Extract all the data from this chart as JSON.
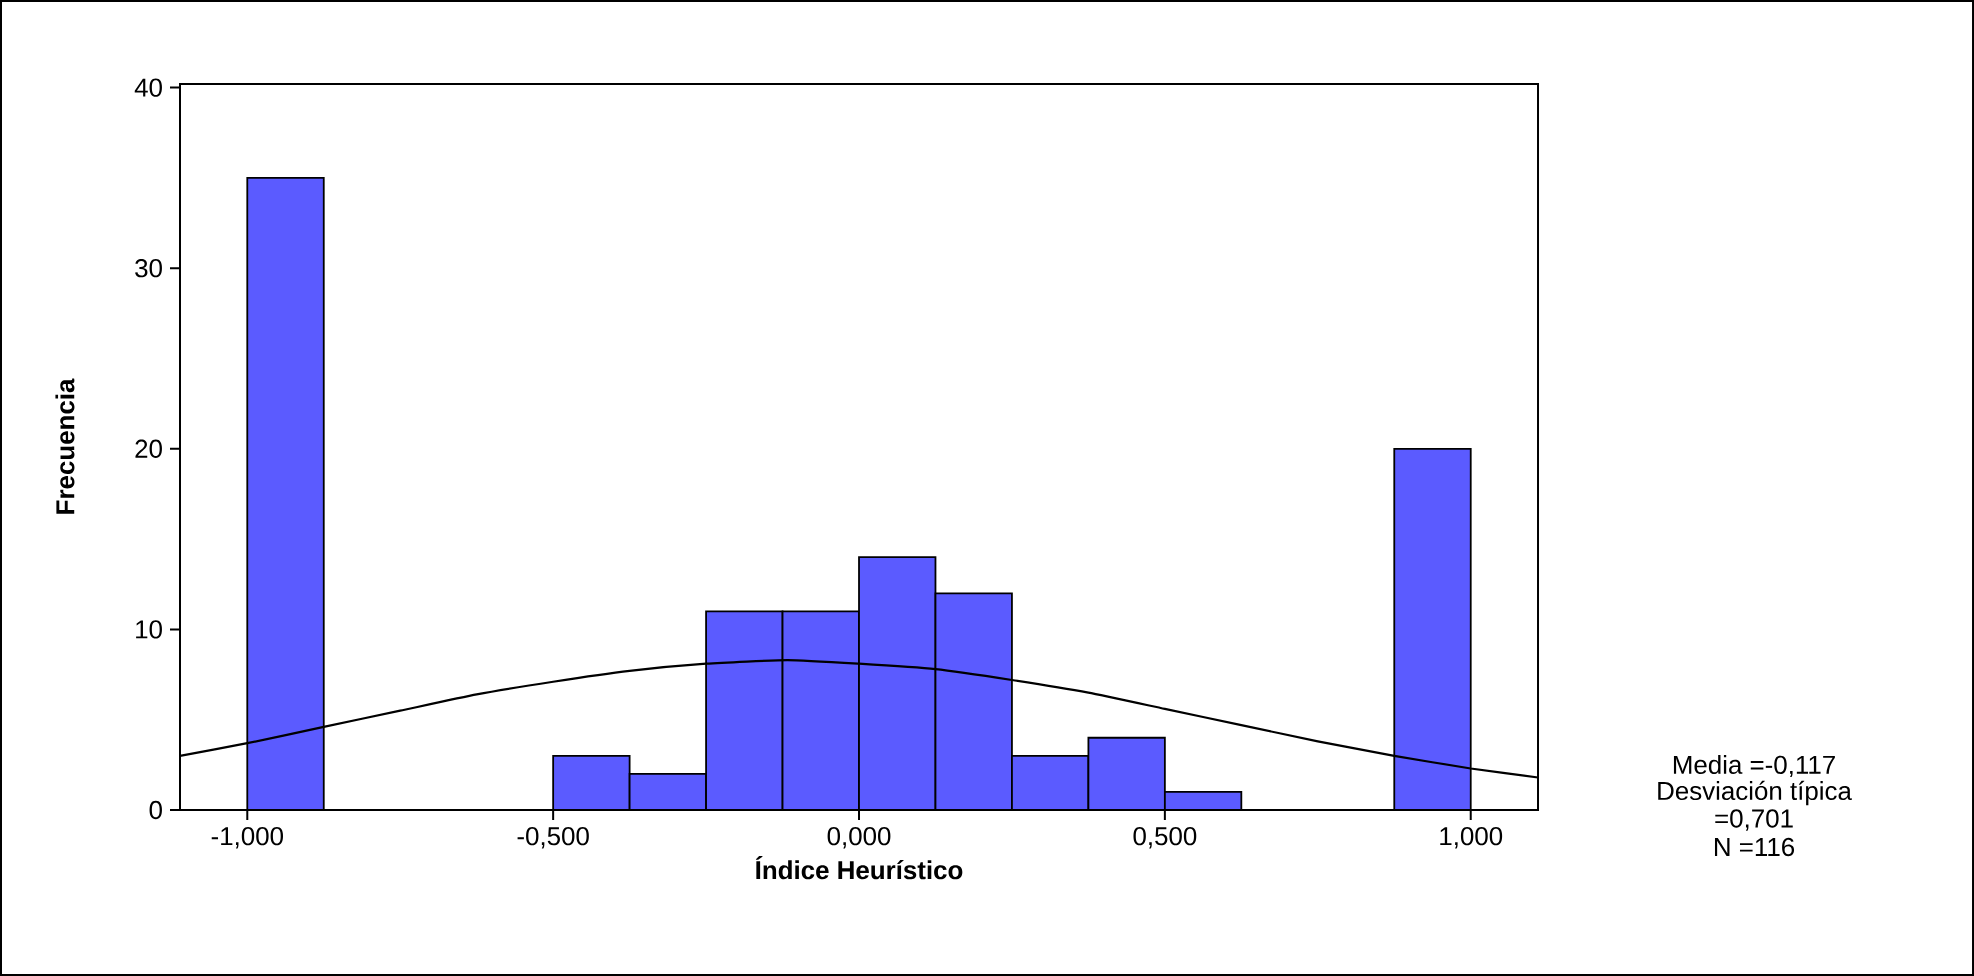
{
  "chart_data": {
    "type": "histogram",
    "xlabel": "Índice Heurístico",
    "ylabel": "Frecuencia",
    "bins": [
      -1.0,
      -0.875,
      -0.75,
      -0.625,
      -0.5,
      -0.375,
      -0.25,
      -0.125,
      0.0,
      0.125,
      0.25,
      0.375,
      0.5,
      0.625,
      0.75,
      0.875,
      1.0
    ],
    "values": [
      35,
      0,
      0,
      0,
      3,
      2,
      11,
      11,
      14,
      12,
      3,
      4,
      1,
      0,
      0,
      20
    ],
    "color": "#5b5bff",
    "series": [
      {
        "type": "line",
        "color": "#000000",
        "x": [
          -1.11,
          -1.0,
          -0.875,
          -0.75,
          -0.625,
          -0.5,
          -0.375,
          -0.25,
          -0.117,
          0.0,
          0.125,
          0.25,
          0.375,
          0.5,
          0.625,
          0.75,
          0.875,
          1.0,
          1.11
        ],
        "values": [
          3.0,
          3.7,
          4.6,
          5.5,
          6.4,
          7.1,
          7.7,
          8.1,
          8.3,
          8.1,
          7.8,
          7.2,
          6.5,
          5.6,
          4.7,
          3.8,
          3.0,
          2.3,
          1.8
        ]
      }
    ],
    "xlim": [
      -1.11,
      1.11
    ],
    "ylim": [
      0,
      40.2
    ],
    "xticks": [
      {
        "value": -1.0,
        "label": "-1,000"
      },
      {
        "value": -0.5,
        "label": "-0,500"
      },
      {
        "value": 0.0,
        "label": "0,000"
      },
      {
        "value": 0.5,
        "label": "0,500"
      },
      {
        "value": 1.0,
        "label": "1,000"
      }
    ],
    "yticks": [
      0,
      10,
      20,
      30,
      40
    ],
    "grid": false,
    "annotations": [
      "Media =-0,117",
      "Desviación típica",
      "=0,701",
      "N =116"
    ]
  }
}
